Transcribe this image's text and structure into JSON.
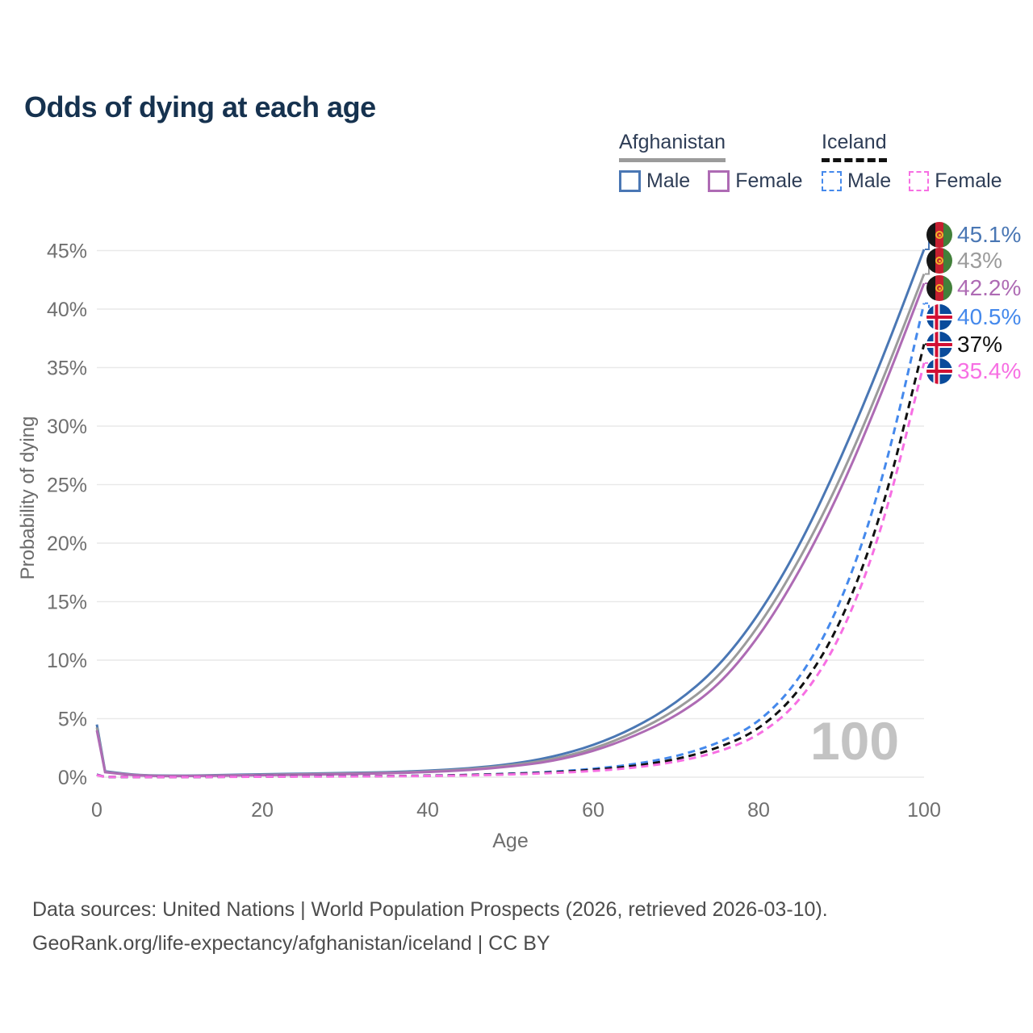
{
  "title": "Odds of dying at each age",
  "legend": {
    "groups": [
      {
        "country": "Afghanistan",
        "line_style": "solid",
        "underline_color": "#9b9b9b",
        "items": [
          {
            "label": "Male",
            "color": "#4a77b4"
          },
          {
            "label": "Female",
            "color": "#ae6bb4"
          }
        ]
      },
      {
        "country": "Iceland",
        "line_style": "dashed",
        "underline_color": "#111111",
        "items": [
          {
            "label": "Male",
            "color": "#4589ec"
          },
          {
            "label": "Female",
            "color": "#f76fe3"
          }
        ]
      }
    ]
  },
  "chart_data": {
    "type": "line",
    "title": "Odds of dying at each age",
    "xlabel": "Age",
    "ylabel": "Probability of dying",
    "xlim": [
      0,
      100
    ],
    "ylim_percent": [
      0,
      46.5
    ],
    "x_ticks": [
      0,
      20,
      40,
      60,
      80,
      100
    ],
    "y_ticks_percent": [
      0,
      5,
      10,
      15,
      20,
      25,
      30,
      35,
      40,
      45
    ],
    "grid": "horizontal",
    "watermark": "100",
    "ages": [
      0,
      1,
      5,
      10,
      15,
      20,
      25,
      30,
      35,
      40,
      45,
      50,
      55,
      60,
      65,
      70,
      75,
      80,
      85,
      90,
      95,
      100
    ],
    "series": [
      {
        "name": "Afghanistan Male",
        "country": "Afghanistan",
        "sex": "Male",
        "style": "solid",
        "color": "#4a77b4",
        "end_label": "45.1%",
        "end_value_percent": 45.1,
        "values_percent": [
          4.5,
          0.5,
          0.15,
          0.12,
          0.18,
          0.25,
          0.3,
          0.35,
          0.42,
          0.55,
          0.75,
          1.1,
          1.7,
          2.7,
          4.2,
          6.3,
          9.3,
          13.8,
          19.8,
          27.3,
          35.8,
          45.1
        ]
      },
      {
        "name": "Afghanistan Both sexes",
        "country": "Afghanistan",
        "sex": "Both",
        "style": "solid",
        "color": "#9b9b9b",
        "end_label": "43%",
        "end_value_percent": 43,
        "values_percent": [
          4.25,
          0.45,
          0.13,
          0.1,
          0.15,
          0.2,
          0.25,
          0.3,
          0.37,
          0.48,
          0.67,
          1.0,
          1.5,
          2.4,
          3.8,
          5.7,
          8.4,
          12.8,
          18.6,
          25.6,
          33.9,
          43.0
        ]
      },
      {
        "name": "Afghanistan Female",
        "country": "Afghanistan",
        "sex": "Female",
        "style": "solid",
        "color": "#ae6bb4",
        "end_label": "42.2%",
        "end_value_percent": 42.2,
        "values_percent": [
          4.0,
          0.42,
          0.12,
          0.09,
          0.13,
          0.17,
          0.21,
          0.26,
          0.33,
          0.43,
          0.6,
          0.9,
          1.35,
          2.2,
          3.5,
          5.2,
          7.7,
          11.9,
          17.6,
          24.6,
          33.0,
          42.2
        ]
      },
      {
        "name": "Iceland Male",
        "country": "Iceland",
        "sex": "Male",
        "style": "dashed",
        "color": "#4589ec",
        "end_label": "40.5%",
        "end_value_percent": 40.5,
        "values_percent": [
          0.22,
          0.02,
          0.01,
          0.01,
          0.03,
          0.06,
          0.08,
          0.09,
          0.1,
          0.13,
          0.2,
          0.3,
          0.45,
          0.7,
          1.1,
          1.75,
          2.85,
          4.6,
          8.3,
          14.8,
          25.2,
          40.5
        ]
      },
      {
        "name": "Iceland Both sexes",
        "country": "Iceland",
        "sex": "Both",
        "style": "dashed",
        "color": "#111111",
        "end_label": "37%",
        "end_value_percent": 37,
        "values_percent": [
          0.2,
          0.02,
          0.01,
          0.01,
          0.025,
          0.05,
          0.07,
          0.08,
          0.09,
          0.12,
          0.18,
          0.27,
          0.4,
          0.62,
          0.95,
          1.5,
          2.45,
          4.0,
          7.3,
          13.1,
          22.6,
          37.0
        ]
      },
      {
        "name": "Iceland Female",
        "country": "Iceland",
        "sex": "Female",
        "style": "dashed",
        "color": "#f76fe3",
        "end_label": "35.4%",
        "end_value_percent": 35.4,
        "values_percent": [
          0.18,
          0.02,
          0.01,
          0.01,
          0.02,
          0.04,
          0.05,
          0.06,
          0.08,
          0.1,
          0.15,
          0.23,
          0.35,
          0.52,
          0.8,
          1.3,
          2.1,
          3.5,
          6.4,
          11.9,
          21.2,
          35.4
        ]
      }
    ]
  },
  "footer": {
    "line1": "Data sources: United Nations | World Population Prospects (2026, retrieved 2026-03-10).",
    "line2": "GeoRank.org/life-expectancy/afghanistan/iceland | CC BY"
  }
}
